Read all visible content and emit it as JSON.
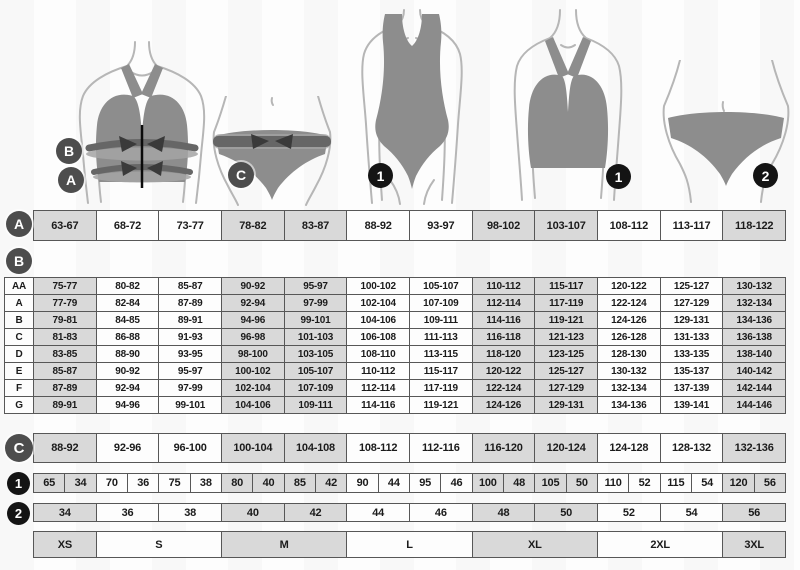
{
  "badges": {
    "a": "A",
    "b": "B",
    "c": "C",
    "one": "1",
    "two": "2"
  },
  "figures": {
    "bra_measure": {
      "name": "bra with bust and underbust measuring bands",
      "band_top_badge": "B",
      "band_bottom_badge": "A"
    },
    "brief_measure": {
      "name": "briefs with hip measuring band",
      "badge": "C"
    },
    "swimsuit": {
      "name": "one-piece swimsuit",
      "badge": "1"
    },
    "bra": {
      "name": "bra",
      "badge": "1"
    },
    "brief": {
      "name": "briefs",
      "badge": "2"
    }
  },
  "tables": {
    "underbust": {
      "label": "A",
      "cells": [
        "63-67",
        "68-72",
        "73-77",
        "78-82",
        "83-87",
        "88-92",
        "93-97",
        "98-102",
        "103-107",
        "108-112",
        "113-117",
        "118-122"
      ]
    },
    "bust_cups": {
      "label": "B",
      "rows": [
        {
          "label": "AA",
          "cells": [
            "75-77",
            "80-82",
            "85-87",
            "90-92",
            "95-97",
            "100-102",
            "105-107",
            "110-112",
            "115-117",
            "120-122",
            "125-127",
            "130-132"
          ]
        },
        {
          "label": "A",
          "cells": [
            "77-79",
            "82-84",
            "87-89",
            "92-94",
            "97-99",
            "102-104",
            "107-109",
            "112-114",
            "117-119",
            "122-124",
            "127-129",
            "132-134"
          ]
        },
        {
          "label": "B",
          "cells": [
            "79-81",
            "84-85",
            "89-91",
            "94-96",
            "99-101",
            "104-106",
            "109-111",
            "114-116",
            "119-121",
            "124-126",
            "129-131",
            "134-136"
          ]
        },
        {
          "label": "C",
          "cells": [
            "81-83",
            "86-88",
            "91-93",
            "96-98",
            "101-103",
            "106-108",
            "111-113",
            "116-118",
            "121-123",
            "126-128",
            "131-133",
            "136-138"
          ]
        },
        {
          "label": "D",
          "cells": [
            "83-85",
            "88-90",
            "93-95",
            "98-100",
            "103-105",
            "108-110",
            "113-115",
            "118-120",
            "123-125",
            "128-130",
            "133-135",
            "138-140"
          ]
        },
        {
          "label": "E",
          "cells": [
            "85-87",
            "90-92",
            "95-97",
            "100-102",
            "105-107",
            "110-112",
            "115-117",
            "120-122",
            "125-127",
            "130-132",
            "135-137",
            "140-142"
          ]
        },
        {
          "label": "F",
          "cells": [
            "87-89",
            "92-94",
            "97-99",
            "102-104",
            "107-109",
            "112-114",
            "117-119",
            "122-124",
            "127-129",
            "132-134",
            "137-139",
            "142-144"
          ]
        },
        {
          "label": "G",
          "cells": [
            "89-91",
            "94-96",
            "99-101",
            "104-106",
            "109-111",
            "114-116",
            "119-121",
            "124-126",
            "129-131",
            "134-136",
            "139-141",
            "144-146"
          ]
        }
      ]
    },
    "hips": {
      "label": "C",
      "cells": [
        "88-92",
        "92-96",
        "96-100",
        "100-104",
        "104-108",
        "108-112",
        "112-116",
        "116-120",
        "120-124",
        "124-128",
        "128-132",
        "132-136"
      ]
    },
    "bra_sizes": {
      "label": "1",
      "pairs": [
        [
          "65",
          "34"
        ],
        [
          "70",
          "36"
        ],
        [
          "75",
          "38"
        ],
        [
          "80",
          "40"
        ],
        [
          "85",
          "42"
        ],
        [
          "90",
          "44"
        ],
        [
          "95",
          "46"
        ],
        [
          "100",
          "48"
        ],
        [
          "105",
          "50"
        ],
        [
          "110",
          "52"
        ],
        [
          "115",
          "54"
        ],
        [
          "120",
          "56"
        ]
      ]
    },
    "confection_sizes": {
      "label": "2",
      "cells": [
        "34",
        "36",
        "38",
        "40",
        "42",
        "44",
        "46",
        "48",
        "50",
        "52",
        "54",
        "56"
      ]
    },
    "international_sizes": [
      {
        "label": "XS",
        "span": 1
      },
      {
        "label": "S",
        "span": 2
      },
      {
        "label": "M",
        "span": 2
      },
      {
        "label": "L",
        "span": 2
      },
      {
        "label": "XL",
        "span": 2
      },
      {
        "label": "2XL",
        "span": 2
      },
      {
        "label": "3XL",
        "span": 1
      }
    ]
  },
  "colors": {
    "cell_shaded": "#d9d9d9",
    "cell_plain": "#fdfdfd",
    "table_border": "#575757",
    "badge_dark": "#4d4d4d",
    "badge_black": "#141414",
    "garment": "#8d8d8d",
    "body_outline": "#b6b6b6",
    "measure_band": "#666666",
    "measure_band_light": "#a5a5a5",
    "arrow": "#3a3a3a"
  }
}
